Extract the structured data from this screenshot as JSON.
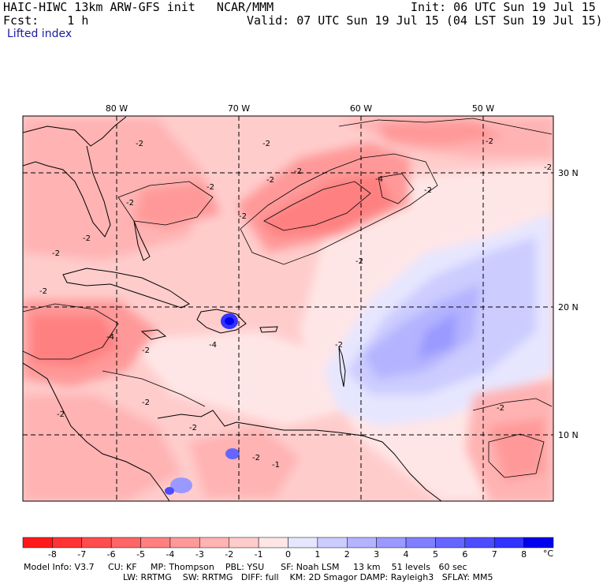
{
  "header": {
    "line1_left": "HAIC-HIWC 13km ARW-GFS init   NCAR/MMM",
    "line1_right": "Init: 06 UTC Sun 19 Jul 15",
    "line2_left": "Fcst:    1 h",
    "line2_right": "Valid: 07 UTC Sun 19 Jul 15 (04 LST Sun 19 Jul 15)",
    "field_name": "Lifted index"
  },
  "map": {
    "lon_labels": [
      "80 W",
      "70 W",
      "60 W",
      "50 W"
    ],
    "lat_labels": [
      "30 N",
      "20 N",
      "10 N"
    ],
    "contour_labels": [
      "-2",
      "-2",
      "-2",
      "-2",
      "-2",
      "-2",
      "-2",
      "-2",
      "-2",
      "-2",
      "-2",
      "-2",
      "-2",
      "-2",
      "-4",
      "-4",
      "-4",
      "-2",
      "-2",
      "-2",
      "-2",
      "-1",
      "-2",
      "-2",
      "-2"
    ]
  },
  "colorbar": {
    "tick_labels": [
      "-8",
      "-7",
      "-6",
      "-5",
      "-4",
      "-3",
      "-2",
      "-1",
      "0",
      "1",
      "2",
      "3",
      "4",
      "5",
      "6",
      "7",
      "8"
    ],
    "unit": "°C",
    "colors": [
      "#ff1a1a",
      "#ff3333",
      "#ff4d4d",
      "#ff6666",
      "#ff8080",
      "#ff9999",
      "#ffb3b3",
      "#ffcccc",
      "#ffe6e6",
      "#e6e6ff",
      "#ccccff",
      "#b3b3ff",
      "#9999ff",
      "#8080ff",
      "#6666ff",
      "#4d4dff",
      "#3333ff",
      "#0000ee"
    ]
  },
  "footer": {
    "line1": "Model Info: V3.7     CU: KF     MP: Thompson    PBL: YSU      SF: Noah LSM     13 km    51 levels   60 sec",
    "line2": "LW: RRTMG    SW: RRTMG   DIFF: full    KM: 2D Smagor DAMP: Rayleigh3   SFLAY: MM5"
  }
}
